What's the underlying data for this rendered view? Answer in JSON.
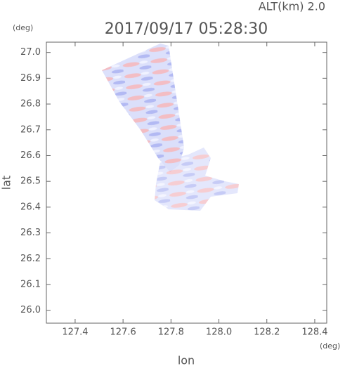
{
  "chart_data": {
    "type": "field",
    "title": "2017/09/17 05:28:30",
    "annotation": "ALT(km) 2.0",
    "y_unit": "(deg)",
    "x_unit": "(deg)",
    "xlabel": "lon",
    "ylabel": "lat",
    "xlim": [
      127.28,
      128.45
    ],
    "ylim": [
      25.95,
      27.04
    ],
    "xticks": [
      127.4,
      127.6,
      127.8,
      {
        "value": 128.0,
        "label": "128.0"
      },
      128.2,
      128.4
    ],
    "yticks": [
      {
        "value": 26.0,
        "label": "26.0"
      },
      26.1,
      26.2,
      26.3,
      26.4,
      26.5,
      26.6,
      26.7,
      26.8,
      26.9,
      {
        "value": 27.0,
        "label": "27.0"
      }
    ]
  }
}
